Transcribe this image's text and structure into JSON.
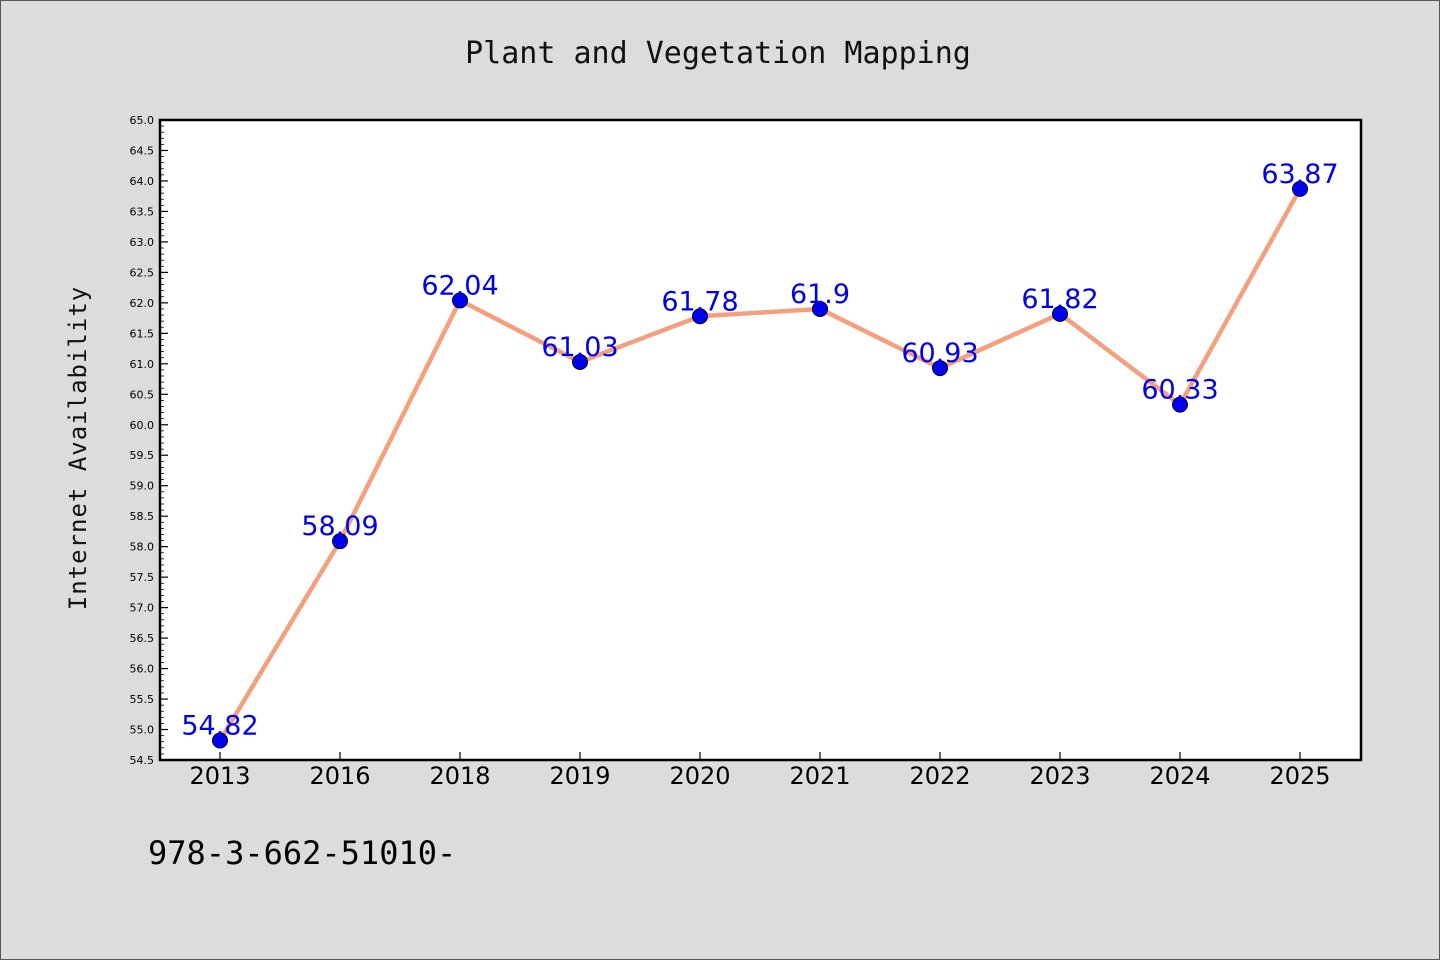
{
  "chart_data": {
    "type": "line",
    "title": "Plant and Vegetation Mapping",
    "xlabel": "",
    "ylabel": "Internet Availability",
    "categories": [
      "2013",
      "2016",
      "2018",
      "2019",
      "2020",
      "2021",
      "2022",
      "2023",
      "2024",
      "2025"
    ],
    "series": [
      {
        "values": [
          54.82,
          58.09,
          62.04,
          61.03,
          61.78,
          61.9,
          60.93,
          61.82,
          60.33,
          63.87
        ],
        "labels": [
          "54.82",
          "58.09",
          "62.04",
          "61.03",
          "61.78",
          "61.9",
          "60.93",
          "61.82",
          "60.33",
          "63.87"
        ]
      }
    ],
    "ylim": [
      54.5,
      65.0
    ],
    "ytick_step": 0.5,
    "grid": false,
    "legend": "none",
    "colors": {
      "line": "#f4a07e",
      "marker": "#0000ee",
      "data_label": "#0000ee",
      "plot_bg": "#ffffff",
      "page_bg": "#dcdcdc"
    }
  },
  "footer": {
    "code": "978-3-662-51010-"
  }
}
